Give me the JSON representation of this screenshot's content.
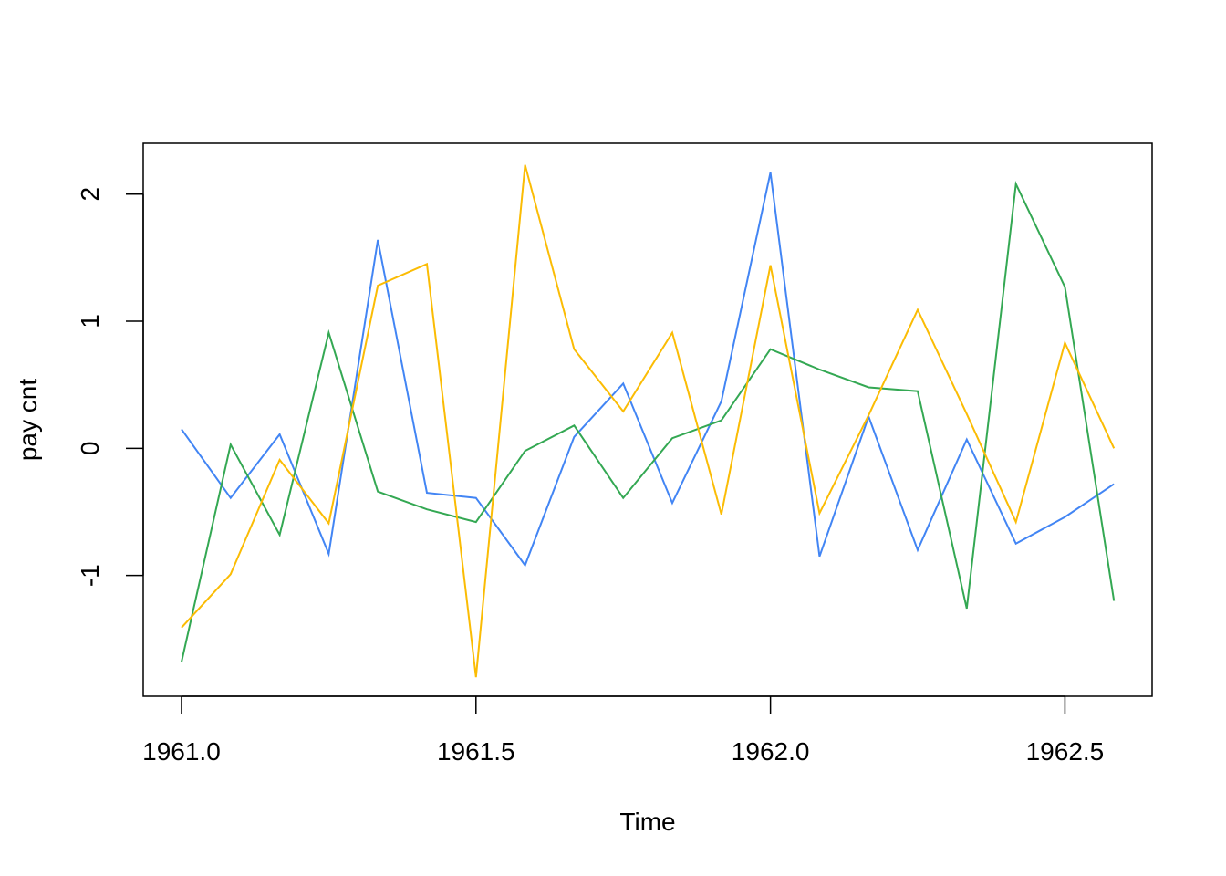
{
  "chart_data": {
    "type": "line",
    "title": "",
    "xlabel": "Time",
    "ylabel": "pay cnt",
    "x": [
      1961.0,
      1961.0833,
      1961.1667,
      1961.25,
      1961.3333,
      1961.4167,
      1961.5,
      1961.5833,
      1961.6667,
      1961.75,
      1961.8333,
      1961.9167,
      1962.0,
      1962.0833,
      1962.1667,
      1962.25,
      1962.3333,
      1962.4167,
      1962.5,
      1962.5833
    ],
    "xlim": [
      1960.935,
      1962.648
    ],
    "ylim": [
      -1.95,
      2.4
    ],
    "xticks": [
      1961.0,
      1961.5,
      1962.0,
      1962.5
    ],
    "xtick_labels": [
      "1961.0",
      "1961.5",
      "1962.0",
      "1962.5"
    ],
    "yticks": [
      -1,
      0,
      1,
      2
    ],
    "ytick_labels": [
      "-1",
      "0",
      "1",
      "2"
    ],
    "grid": false,
    "series": [
      {
        "color": "#4285F4",
        "values": [
          0.15,
          -0.39,
          0.11,
          -0.83,
          1.64,
          -0.35,
          -0.39,
          -0.92,
          0.09,
          0.51,
          -0.43,
          0.37,
          2.17,
          -0.85,
          0.25,
          -0.8,
          0.07,
          -0.75,
          -0.54,
          -0.28
        ]
      },
      {
        "color": "#34A853",
        "values": [
          -1.68,
          0.03,
          -0.68,
          0.91,
          -0.34,
          -0.48,
          -0.58,
          -0.02,
          0.18,
          -0.39,
          0.08,
          0.22,
          0.78,
          0.62,
          0.48,
          0.45,
          -1.26,
          2.08,
          1.27,
          -1.2
        ]
      },
      {
        "color": "#FBBC04",
        "values": [
          -1.41,
          -0.99,
          -0.09,
          -0.59,
          1.28,
          1.45,
          -1.8,
          2.23,
          0.78,
          0.29,
          0.91,
          -0.52,
          1.44,
          -0.51,
          0.26,
          1.09,
          0.27,
          -0.58,
          0.83,
          0.0
        ]
      }
    ]
  }
}
